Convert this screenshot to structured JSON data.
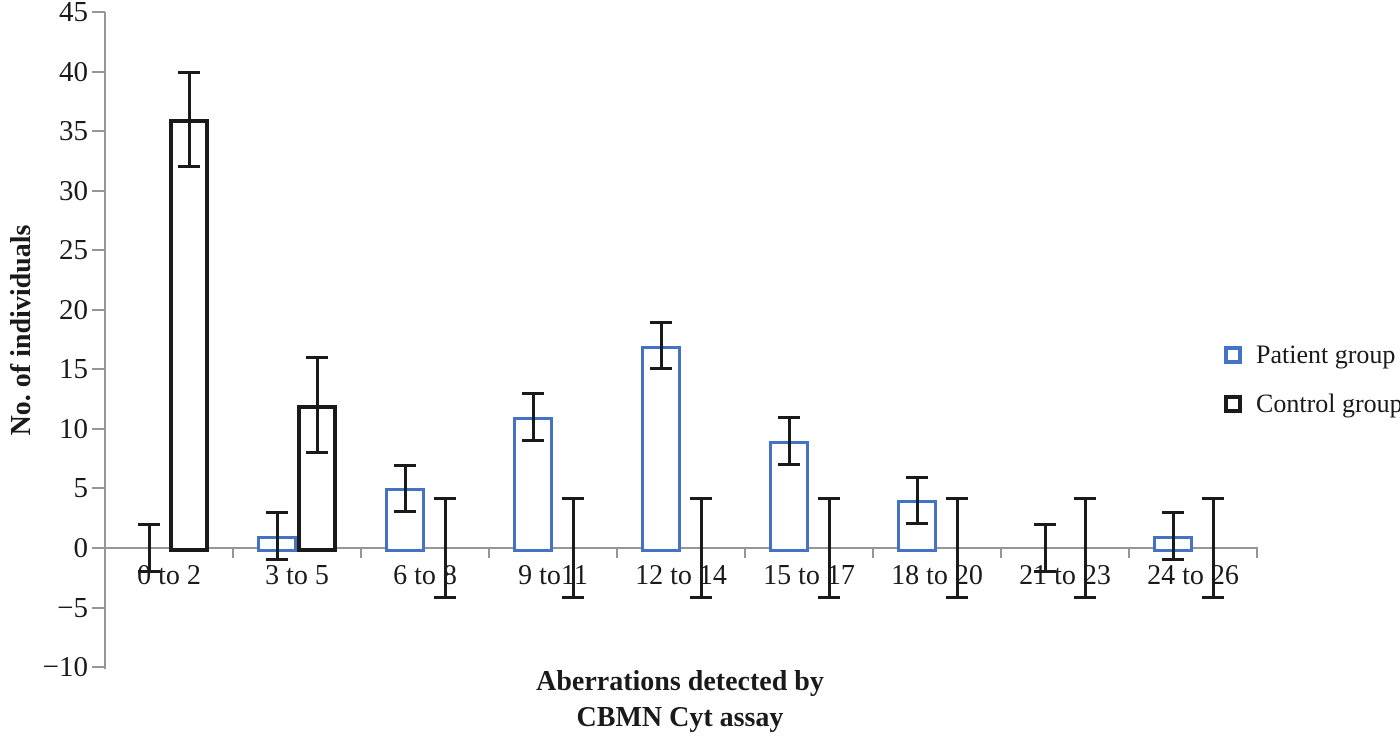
{
  "chart_data": {
    "type": "bar",
    "title": "",
    "categories": [
      "0 to 2",
      "3 to 5",
      "6 to 8",
      "9 to11",
      "12 to 14",
      "15 to 17",
      "18 to 20",
      "21 to 23",
      "24 to 26"
    ],
    "series": [
      {
        "name": "Patient group",
        "values": [
          0,
          1,
          5,
          11,
          17,
          9,
          4,
          0,
          1
        ],
        "errors": [
          2,
          2,
          2,
          2,
          2,
          2,
          2,
          2,
          2
        ],
        "color": "#4472C4"
      },
      {
        "name": "Control group",
        "values": [
          36,
          12,
          0,
          0,
          0,
          0,
          0,
          0,
          0
        ],
        "errors": [
          4,
          4,
          4.2,
          4.2,
          4.2,
          4.2,
          4.2,
          4.2,
          4.2
        ],
        "color": "#1a1a1a"
      }
    ],
    "xlabel": "Aberrations detected by\nCBMN Cyt assay",
    "ylabel": "No. of individuals",
    "ylim": [
      -10,
      45
    ],
    "ytick_step": 5,
    "ytick_labels": [
      "45",
      "40",
      "35",
      "30",
      "25",
      "20",
      "15",
      "10",
      "5",
      "0",
      "−5",
      "−10"
    ],
    "grid": false,
    "legend_position": "right",
    "bar_fill": "#ffffff",
    "axis_color": "#969696",
    "error_bar_color": "#1a1a1a"
  }
}
